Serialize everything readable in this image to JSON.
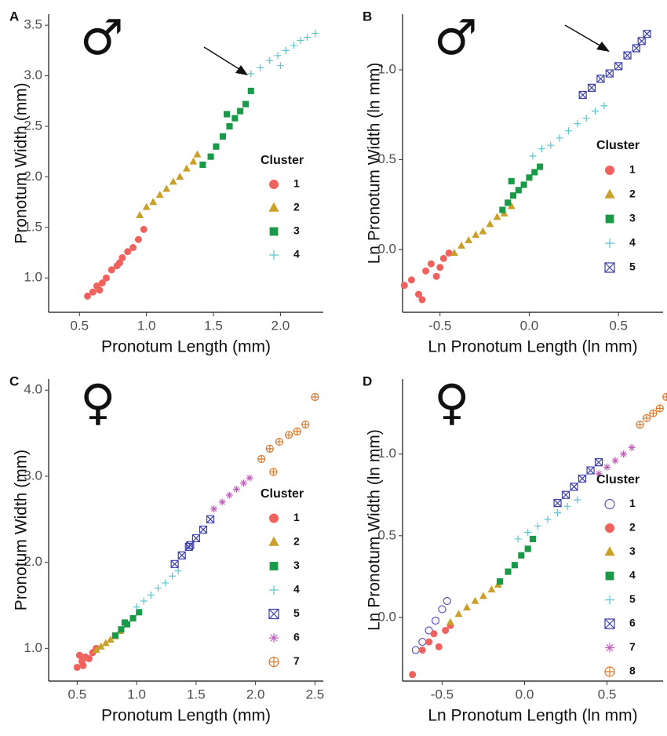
{
  "chart_data": [
    {
      "type": "scatter",
      "panel_label": "A",
      "sex_symbol": "♂",
      "x_label": "Pronotum Length (mm)",
      "y_label": "Pronotum Width (mm)",
      "legend_title": "Cluster",
      "legend": "right",
      "xlim": [
        0.27,
        2.32
      ],
      "ylim": [
        0.66,
        3.61
      ],
      "xticks": [
        0.5,
        {
          "value": 1.0,
          "label": "1.0"
        },
        1.5,
        {
          "value": 2.0,
          "label": "2.0"
        }
      ],
      "yticks": [
        {
          "value": 1.0,
          "label": "1.0"
        },
        1.5,
        {
          "value": 2.0,
          "label": "2.0"
        },
        2.5,
        {
          "value": 3.0,
          "label": "3.0"
        },
        3.5
      ],
      "series": [
        {
          "name": "1",
          "color": "#f0625e",
          "marker": "circle",
          "x": [
            0.56,
            0.6,
            0.63,
            0.67,
            0.7,
            0.74,
            0.78,
            0.82,
            0.86,
            0.9,
            0.94,
            0.98,
            0.65,
            0.8
          ],
          "values": [
            0.82,
            0.86,
            0.92,
            0.95,
            1.0,
            1.08,
            1.12,
            1.2,
            1.26,
            1.3,
            1.38,
            1.48,
            0.88,
            1.15
          ]
        },
        {
          "name": "2",
          "color": "#c9a02a",
          "marker": "triangle",
          "x": [
            0.95,
            1.0,
            1.05,
            1.1,
            1.15,
            1.2,
            1.25,
            1.3,
            1.35,
            1.38
          ],
          "values": [
            1.62,
            1.7,
            1.75,
            1.82,
            1.88,
            1.95,
            2.0,
            2.08,
            2.15,
            2.22
          ]
        },
        {
          "name": "3",
          "color": "#1a9a48",
          "marker": "square",
          "x": [
            1.42,
            1.48,
            1.52,
            1.57,
            1.62,
            1.66,
            1.7,
            1.74,
            1.78,
            1.6
          ],
          "values": [
            2.12,
            2.2,
            2.3,
            2.4,
            2.5,
            2.58,
            2.65,
            2.72,
            2.85,
            2.62
          ]
        },
        {
          "name": "4",
          "color": "#5cc6cf",
          "marker": "plus",
          "x": [
            1.78,
            1.85,
            1.92,
            1.98,
            2.04,
            2.1,
            2.15,
            2.2,
            2.26,
            2.0
          ],
          "values": [
            3.02,
            3.08,
            3.15,
            3.2,
            3.25,
            3.3,
            3.35,
            3.38,
            3.42,
            3.1
          ]
        }
      ]
    },
    {
      "type": "scatter",
      "panel_label": "B",
      "sex_symbol": "♂",
      "x_label": "Ln Pronotum Length (ln mm)",
      "y_label": "Ln Pronotum Width (ln mm)",
      "legend_title": "Cluster",
      "legend": "right",
      "xlim": [
        -0.71,
        0.75
      ],
      "ylim": [
        -0.35,
        1.31
      ],
      "xticks": [
        -0.5,
        {
          "value": 0.0,
          "label": "0.0"
        },
        0.5
      ],
      "yticks": [
        {
          "value": 0.0,
          "label": "0.0"
        },
        0.5,
        {
          "value": 1.0,
          "label": "1.0"
        }
      ],
      "series": [
        {
          "name": "1",
          "color": "#f0625e",
          "marker": "circle",
          "x": [
            -0.7,
            -0.66,
            -0.62,
            -0.58,
            -0.55,
            -0.52,
            -0.48,
            -0.45,
            -0.6,
            -0.5
          ],
          "values": [
            -0.2,
            -0.17,
            -0.25,
            -0.12,
            -0.08,
            -0.15,
            -0.05,
            -0.02,
            -0.28,
            -0.1
          ]
        },
        {
          "name": "2",
          "color": "#c9a02a",
          "marker": "triangle",
          "x": [
            -0.42,
            -0.38,
            -0.34,
            -0.3,
            -0.26,
            -0.22,
            -0.18,
            -0.14,
            -0.1
          ],
          "values": [
            -0.02,
            0.02,
            0.05,
            0.08,
            0.1,
            0.14,
            0.18,
            0.2,
            0.24
          ]
        },
        {
          "name": "3",
          "color": "#1a9a48",
          "marker": "square",
          "x": [
            -0.15,
            -0.12,
            -0.09,
            -0.06,
            -0.03,
            0.0,
            0.03,
            0.06,
            -0.1
          ],
          "values": [
            0.22,
            0.26,
            0.3,
            0.33,
            0.36,
            0.4,
            0.43,
            0.46,
            0.38
          ]
        },
        {
          "name": "4",
          "color": "#5cc6cf",
          "marker": "plus",
          "x": [
            0.02,
            0.07,
            0.12,
            0.17,
            0.22,
            0.27,
            0.32,
            0.37,
            0.42
          ],
          "values": [
            0.52,
            0.56,
            0.58,
            0.62,
            0.66,
            0.7,
            0.73,
            0.77,
            0.8
          ]
        },
        {
          "name": "5",
          "color": "#3b3fa6",
          "marker": "boxx",
          "x": [
            0.3,
            0.35,
            0.4,
            0.45,
            0.5,
            0.55,
            0.6,
            0.63,
            0.66
          ],
          "values": [
            0.86,
            0.9,
            0.95,
            0.98,
            1.02,
            1.08,
            1.12,
            1.16,
            1.2
          ]
        }
      ]
    },
    {
      "type": "scatter",
      "panel_label": "C",
      "sex_symbol": "♀",
      "x_label": "Pronotum Length (mm)",
      "y_label": "Pronotum Width (mm)",
      "legend_title": "Cluster",
      "legend": "right",
      "xlim": [
        0.26,
        2.57
      ],
      "ylim": [
        0.62,
        4.13
      ],
      "xticks": [
        0.5,
        {
          "value": 1.0,
          "label": "1.0"
        },
        1.5,
        {
          "value": 2.0,
          "label": "2.0"
        },
        2.5
      ],
      "yticks": [
        {
          "value": 1.0,
          "label": "1.0"
        },
        {
          "value": 2.0,
          "label": "2.0"
        },
        {
          "value": 3.0,
          "label": "3.0"
        },
        {
          "value": 4.0,
          "label": "4.0"
        }
      ],
      "series": [
        {
          "name": "1",
          "color": "#f0625e",
          "marker": "circle",
          "x": [
            0.5,
            0.54,
            0.57,
            0.6,
            0.63,
            0.66,
            0.55,
            0.52
          ],
          "values": [
            0.78,
            0.85,
            0.9,
            0.88,
            0.95,
            1.0,
            0.8,
            0.92
          ]
        },
        {
          "name": "2",
          "color": "#c9a02a",
          "marker": "triangle",
          "x": [
            0.66,
            0.7,
            0.74,
            0.78,
            0.82,
            0.86
          ],
          "values": [
            0.98,
            1.02,
            1.06,
            1.1,
            1.14,
            1.2
          ]
        },
        {
          "name": "3",
          "color": "#1a9a48",
          "marker": "square",
          "x": [
            0.82,
            0.87,
            0.92,
            0.97,
            1.02,
            0.9
          ],
          "values": [
            1.15,
            1.22,
            1.28,
            1.35,
            1.42,
            1.3
          ]
        },
        {
          "name": "4",
          "color": "#5cc6cf",
          "marker": "plus",
          "x": [
            1.0,
            1.06,
            1.12,
            1.18,
            1.24,
            1.3,
            1.35
          ],
          "values": [
            1.48,
            1.55,
            1.62,
            1.7,
            1.76,
            1.84,
            1.9
          ]
        },
        {
          "name": "5",
          "color": "#3b3fa6",
          "marker": "boxx",
          "x": [
            1.32,
            1.38,
            1.44,
            1.5,
            1.56,
            1.62,
            1.45
          ],
          "values": [
            1.98,
            2.08,
            2.18,
            2.28,
            2.38,
            2.5,
            2.2
          ]
        },
        {
          "name": "6",
          "color": "#c15fbd",
          "marker": "asterisk",
          "x": [
            1.65,
            1.72,
            1.78,
            1.84,
            1.9,
            1.95
          ],
          "values": [
            2.62,
            2.7,
            2.78,
            2.85,
            2.92,
            2.98
          ]
        },
        {
          "name": "7",
          "color": "#d9782c",
          "marker": "circleplus",
          "x": [
            2.05,
            2.12,
            2.2,
            2.28,
            2.35,
            2.42,
            2.5,
            2.15
          ],
          "values": [
            3.2,
            3.32,
            3.4,
            3.48,
            3.52,
            3.6,
            3.92,
            3.05
          ]
        }
      ]
    },
    {
      "type": "scatter",
      "panel_label": "D",
      "sex_symbol": "♀",
      "x_label": "Ln Pronotum Length (ln mm)",
      "y_label": "Ln Pronotum Width (ln mm)",
      "legend_title": "Cluster",
      "legend": "right",
      "xlim": [
        -0.74,
        0.84
      ],
      "ylim": [
        -0.39,
        1.46
      ],
      "xticks": [
        -0.5,
        {
          "value": 0.0,
          "label": "0.0"
        },
        0.5
      ],
      "yticks": [
        {
          "value": 0.0,
          "label": "0.0"
        },
        0.5,
        {
          "value": 1.0,
          "label": "1.0"
        }
      ],
      "series": [
        {
          "name": "1",
          "color": "#5a4fc2",
          "marker": "open-circle",
          "x": [
            -0.66,
            -0.62,
            -0.58,
            -0.54,
            -0.5,
            -0.47
          ],
          "values": [
            -0.2,
            -0.15,
            -0.08,
            -0.02,
            0.05,
            0.1
          ]
        },
        {
          "name": "2",
          "color": "#f0625e",
          "marker": "circle",
          "x": [
            -0.68,
            -0.62,
            -0.58,
            -0.55,
            -0.52,
            -0.48,
            -0.45
          ],
          "values": [
            -0.35,
            -0.2,
            -0.15,
            -0.1,
            -0.18,
            -0.08,
            -0.05
          ]
        },
        {
          "name": "3",
          "color": "#c9a02a",
          "marker": "triangle",
          "x": [
            -0.45,
            -0.4,
            -0.35,
            -0.3,
            -0.25,
            -0.2,
            -0.16
          ],
          "values": [
            -0.03,
            0.02,
            0.06,
            0.1,
            0.13,
            0.17,
            0.2
          ]
        },
        {
          "name": "4",
          "color": "#1a9a48",
          "marker": "square",
          "x": [
            -0.15,
            -0.1,
            -0.06,
            -0.02,
            0.02,
            0.05
          ],
          "values": [
            0.22,
            0.28,
            0.32,
            0.38,
            0.42,
            0.48
          ]
        },
        {
          "name": "5",
          "color": "#5cc6cf",
          "marker": "plus",
          "x": [
            -0.04,
            0.02,
            0.08,
            0.14,
            0.2,
            0.26,
            0.32
          ],
          "values": [
            0.48,
            0.52,
            0.56,
            0.6,
            0.64,
            0.68,
            0.72
          ]
        },
        {
          "name": "6",
          "color": "#3b3fa6",
          "marker": "boxx",
          "x": [
            0.2,
            0.25,
            0.3,
            0.35,
            0.4,
            0.45
          ],
          "values": [
            0.7,
            0.75,
            0.8,
            0.85,
            0.9,
            0.95
          ]
        },
        {
          "name": "7",
          "color": "#c15fbd",
          "marker": "asterisk",
          "x": [
            0.45,
            0.5,
            0.55,
            0.6,
            0.65
          ],
          "values": [
            0.88,
            0.92,
            0.96,
            1.0,
            1.04
          ]
        },
        {
          "name": "8",
          "color": "#d9782c",
          "marker": "circleplus",
          "x": [
            0.7,
            0.74,
            0.78,
            0.82,
            0.86
          ],
          "values": [
            1.18,
            1.22,
            1.25,
            1.28,
            1.35
          ]
        }
      ]
    }
  ]
}
